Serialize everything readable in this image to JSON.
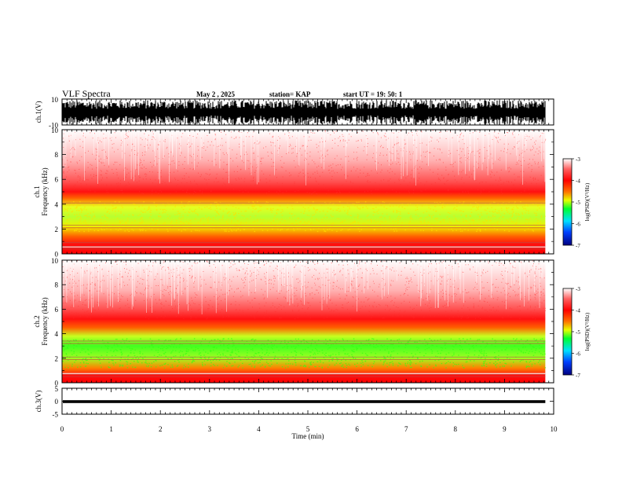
{
  "header": {
    "title": "VLF Spectra",
    "date": "May 2 , 2025",
    "station": "station= KAP",
    "start": "start UT = 19: 50: 1"
  },
  "chart_data": {
    "type": "spectrogram",
    "xlabel": "Time (min)",
    "xlim": [
      0,
      10
    ],
    "xticks": [
      "0",
      "1",
      "2",
      "3",
      "4",
      "5",
      "6",
      "7",
      "8",
      "9",
      "10"
    ],
    "data_end_min": 9.83,
    "panels": [
      {
        "id": "ch1v",
        "ylabel": "ch.1(V)",
        "ylim": [
          -10,
          10
        ],
        "yticks": [
          "10",
          "-10"
        ]
      },
      {
        "id": "ch1spec",
        "ylabel_top": "ch.1",
        "ylabel": "Frequency (kHz)",
        "ylim": [
          0,
          10
        ],
        "yticks": [
          "0",
          "2",
          "4",
          "6",
          "8",
          "10"
        ],
        "red_band_top_khz": 4.8,
        "green_band_khz": [
          1.8,
          4.2
        ]
      },
      {
        "id": "ch2spec",
        "ylabel_top": "ch.2",
        "ylabel": "Frequency (kHz)",
        "ylim": [
          0,
          10
        ],
        "yticks": [
          "0",
          "2",
          "4",
          "6",
          "8",
          "10"
        ],
        "red_band_top_khz": 5.2,
        "green_band_khz": [
          1.2,
          3.6
        ]
      },
      {
        "id": "ch3v",
        "ylabel": "ch.3(V)",
        "ylim": [
          -5,
          5
        ],
        "yticks": [
          "5",
          "0",
          "-5"
        ]
      }
    ],
    "colorbar": {
      "label": "log(PSD)(V²/Hz)",
      "range": [
        -7,
        -3
      ],
      "ticks": [
        "-3",
        "-4",
        "-5",
        "-6",
        "-7"
      ],
      "colors": [
        "#000080",
        "#0050ff",
        "#00e0ff",
        "#00ff30",
        "#e0ff00",
        "#ff7000",
        "#ff0000",
        "#ffffff"
      ]
    }
  }
}
